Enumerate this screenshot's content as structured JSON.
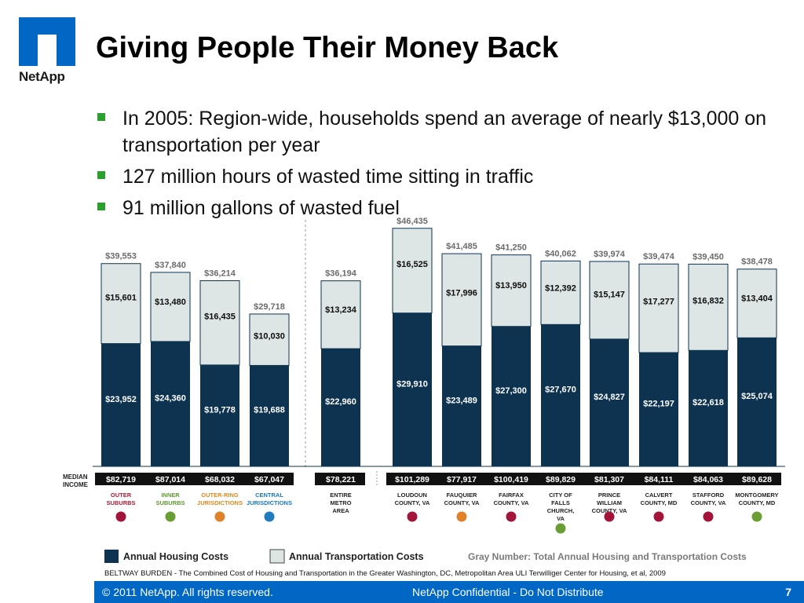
{
  "logo": {
    "text": "NetApp"
  },
  "slide": {
    "title": "Giving People Their Money Back",
    "bullets": [
      "In 2005: Region-wide, households spend an average of nearly $13,000 on transportation per year",
      "127 million hours of wasted time sitting in traffic",
      "91 million gallons of wasted fuel"
    ]
  },
  "chart_data": {
    "type": "bar",
    "stacked": true,
    "title": "",
    "categories": [
      [
        "OUTER",
        "SUBURBS"
      ],
      [
        "INNER",
        "SUBURBS"
      ],
      [
        "OUTER-RING",
        "JURISDICTIONS"
      ],
      [
        "CENTRAL",
        "JURISDICTIONS"
      ],
      [
        "ENTIRE",
        "METRO",
        "AREA"
      ],
      [
        "LOUDOUN",
        "COUNTY, VA"
      ],
      [
        "FAUQUIER",
        "COUNTY, VA"
      ],
      [
        "FAIRFAX",
        "COUNTY, VA"
      ],
      [
        "CITY OF",
        "FALLS",
        "CHURCH,",
        "VA"
      ],
      [
        "PRINCE",
        "WILLIAM",
        "COUNTY, VA"
      ],
      [
        "CALVERT",
        "COUNTY, MD"
      ],
      [
        "STAFFORD",
        "COUNTY, VA"
      ],
      [
        "MONTGOMERY",
        "COUNTY, MD"
      ]
    ],
    "series": [
      {
        "name": "Annual Housing Costs",
        "color": "#0d3350",
        "values": [
          23952,
          24360,
          19778,
          19688,
          22960,
          29910,
          23489,
          27300,
          27670,
          24827,
          22197,
          22618,
          25074
        ],
        "labels": [
          "$23,952",
          "$24,360",
          "$19,778",
          "$19,688",
          "$22,960",
          "$29,910",
          "$23,489",
          "$27,300",
          "$27,670",
          "$24,827",
          "$22,197",
          "$22,618",
          "$25,074"
        ]
      },
      {
        "name": "Annual Transportation Costs",
        "color": "#dde6e4",
        "values": [
          15601,
          13480,
          16435,
          10030,
          13234,
          16525,
          17996,
          13950,
          12392,
          15147,
          17277,
          16832,
          13404
        ],
        "labels": [
          "$15,601",
          "$13,480",
          "$16,435",
          "$10,030",
          "$13,234",
          "$16,525",
          "$17,996",
          "$13,950",
          "$12,392",
          "$15,147",
          "$17,277",
          "$16,832",
          "$13,404"
        ]
      }
    ],
    "totals": [
      39553,
      37840,
      36214,
      29718,
      36194,
      46435,
      41485,
      41250,
      40062,
      39974,
      39474,
      39450,
      38478
    ],
    "total_labels": [
      "$39,553",
      "$37,840",
      "$36,214",
      "$29,718",
      "$36,194",
      "$46,435",
      "$41,485",
      "$41,250",
      "$40,062",
      "$39,974",
      "$39,474",
      "$39,450",
      "$38,478"
    ],
    "median_income_label": [
      "MEDIAN",
      "INCOME"
    ],
    "median_income": [
      "$82,719",
      "$87,014",
      "$68,032",
      "$67,047",
      "$78,221",
      "$101,289",
      "$77,917",
      "$100,419",
      "$89,829",
      "$81,307",
      "$84,111",
      "$84,063",
      "$89,628"
    ],
    "category_label_colors": [
      "#b11b34",
      "#5e9a2e",
      "#e08a1e",
      "#1a7bbf",
      "#222222",
      "#222222",
      "#222222",
      "#222222",
      "#222222",
      "#222222",
      "#222222",
      "#222222",
      "#222222"
    ],
    "dot_colors": [
      "#a3143a",
      "#6a9e34",
      "#e0822a",
      "#1f7cbf",
      "",
      "#a3143a",
      "#e0822a",
      "#a3143a",
      "#6a9e34",
      "#a3143a",
      "#a3143a",
      "#a3143a",
      "#6a9e34"
    ],
    "ylim": [
      0,
      50000
    ],
    "legend": {
      "housing": "Annual Housing Costs",
      "transportation": "Annual Transportation Costs",
      "note": "Gray Number: Total Annual Housing and Transportation Costs"
    },
    "source": "BELTWAY BURDEN - The Combined Cost of Housing and Transportation in the Greater Washington, DC, Metropolitan Area ULI Terwilliger Center for Housing, et al, 2009"
  },
  "footer": {
    "copyright": "© 2011 NetApp.  All rights reserved.",
    "confidential": "NetApp Confidential - Do Not Distribute",
    "page": "7"
  }
}
